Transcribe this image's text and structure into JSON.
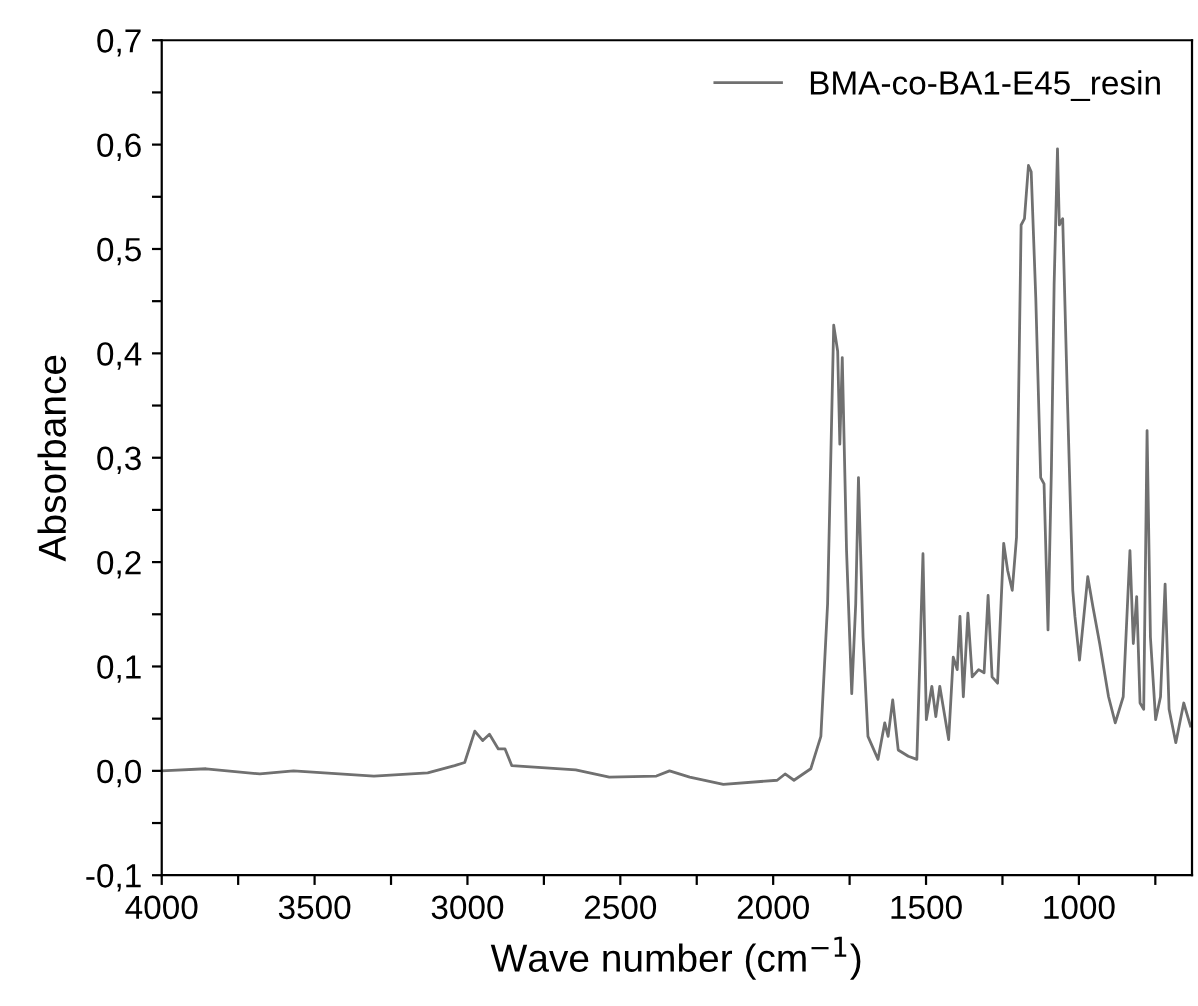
{
  "chart_data": {
    "type": "line",
    "xlabel": "Wave number (cm$^{−1}$)",
    "ylabel": "Absorbance",
    "xlim": [
      4000,
      630
    ],
    "ylim": [
      -0.1,
      0.7
    ],
    "xticks": [
      4000,
      {
        "value": 3750,
        "label": null
      },
      3500,
      {
        "value": 3250,
        "label": null
      },
      3000,
      {
        "value": 2750,
        "label": null
      },
      2500,
      {
        "value": 2250,
        "label": null
      },
      2000,
      {
        "value": 1750,
        "label": null
      },
      1500,
      {
        "value": 1250,
        "label": null
      },
      1000,
      {
        "value": 750,
        "label": null
      }
    ],
    "yticks": [
      {
        "value": -0.1,
        "label": "-0,1"
      },
      {
        "value": -0.05,
        "label": null
      },
      {
        "value": 0.0,
        "label": "0,0"
      },
      {
        "value": 0.05,
        "label": null
      },
      {
        "value": 0.1,
        "label": "0,1"
      },
      {
        "value": 0.15,
        "label": null
      },
      {
        "value": 0.2,
        "label": "0,2"
      },
      {
        "value": 0.25,
        "label": null
      },
      {
        "value": 0.3,
        "label": "0,3"
      },
      {
        "value": 0.35,
        "label": null
      },
      {
        "value": 0.4,
        "label": "0,4"
      },
      {
        "value": 0.45,
        "label": null
      },
      {
        "value": 0.5,
        "label": "0,5"
      },
      {
        "value": 0.55,
        "label": null
      },
      {
        "value": 0.6,
        "label": "0,6"
      },
      {
        "value": 0.65,
        "label": null
      },
      {
        "value": 0.7,
        "label": "0,7"
      }
    ],
    "grid": false,
    "legend": "top right",
    "marker": "none",
    "line_style": "solid",
    "series": [
      {
        "name": "BMA-co-BA1-E45_resin",
        "color": "#707070",
        "x": [
          4000,
          3855,
          3679,
          3569,
          3306,
          3130,
          3042,
          3009,
          2976,
          2950,
          2928,
          2899,
          2877,
          2855,
          2646,
          2536,
          2382,
          2339,
          2273,
          2163,
          1987,
          1961,
          1932,
          1877,
          1844,
          1822,
          1802,
          1789,
          1782,
          1774,
          1760,
          1743,
          1730,
          1721,
          1706,
          1690,
          1657,
          1635,
          1624,
          1609,
          1591,
          1558,
          1530,
          1510,
          1499,
          1481,
          1468,
          1455,
          1426,
          1411,
          1398,
          1389,
          1378,
          1363,
          1349,
          1328,
          1310,
          1297,
          1284,
          1266,
          1246,
          1233,
          1218,
          1204,
          1189,
          1178,
          1165,
          1156,
          1141,
          1125,
          1114,
          1101,
          1090,
          1081,
          1070,
          1064,
          1053,
          1037,
          1020,
          1013,
          998,
          971,
          954,
          932,
          903,
          881,
          855,
          833,
          822,
          811,
          800,
          788,
          777,
          766,
          749,
          733,
          718,
          705,
          683,
          657,
          635
        ],
        "values": [
          0.0,
          0.002,
          -0.003,
          0.0,
          -0.005,
          -0.002,
          0.005,
          0.008,
          0.038,
          0.029,
          0.035,
          0.021,
          0.021,
          0.005,
          0.001,
          -0.006,
          -0.005,
          0.0,
          -0.006,
          -0.013,
          -0.009,
          -0.003,
          -0.009,
          0.002,
          0.033,
          0.16,
          0.427,
          0.402,
          0.313,
          0.396,
          0.211,
          0.074,
          0.16,
          0.281,
          0.128,
          0.033,
          0.011,
          0.046,
          0.033,
          0.068,
          0.02,
          0.014,
          0.011,
          0.208,
          0.049,
          0.081,
          0.052,
          0.081,
          0.03,
          0.109,
          0.097,
          0.148,
          0.071,
          0.151,
          0.09,
          0.097,
          0.094,
          0.168,
          0.09,
          0.084,
          0.218,
          0.192,
          0.173,
          0.224,
          0.523,
          0.529,
          0.58,
          0.574,
          0.453,
          0.281,
          0.275,
          0.135,
          0.288,
          0.466,
          0.596,
          0.523,
          0.529,
          0.351,
          0.173,
          0.148,
          0.106,
          0.186,
          0.157,
          0.122,
          0.071,
          0.046,
          0.071,
          0.211,
          0.122,
          0.167,
          0.065,
          0.059,
          0.326,
          0.128,
          0.049,
          0.071,
          0.179,
          0.059,
          0.027,
          0.065,
          0.043
        ]
      }
    ]
  }
}
